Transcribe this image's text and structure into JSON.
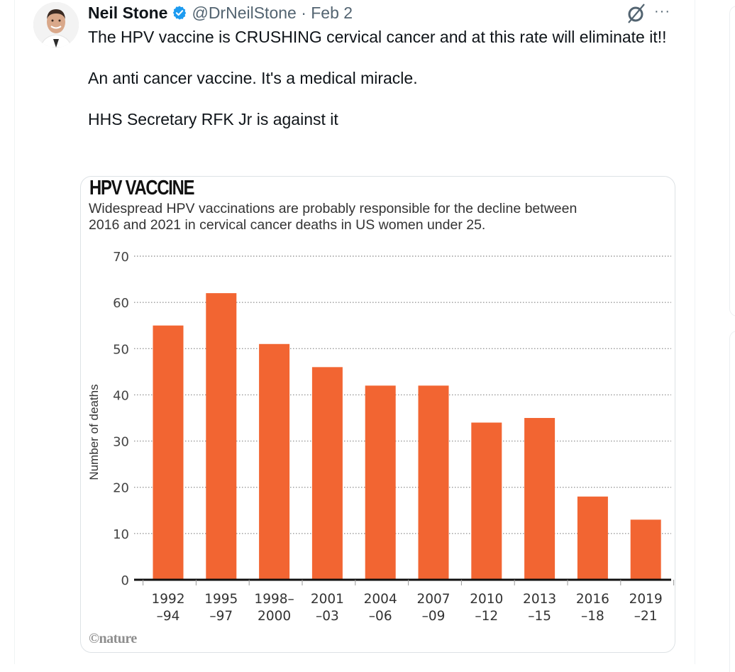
{
  "tweet": {
    "author_name": "Neil Stone",
    "handle_and_date": "@DrNeilStone · Feb 2",
    "verified": true,
    "lines": [
      "The HPV vaccine is CRUSHING cervical cancer and at this rate will eliminate it!!",
      "An anti cancer vaccine. It's a medical miracle.",
      "HHS Secretary RFK Jr is against it"
    ],
    "icons": {
      "verified": "verified-badge-icon",
      "grok": "grok-icon",
      "more": "more-icon"
    },
    "more_label": "···"
  },
  "colors": {
    "bar": "#f26532",
    "verified": "#1d9bf0",
    "handle": "#536471",
    "grid": "#999999"
  },
  "chart_data": {
    "type": "bar",
    "title": "HPV VACCINE",
    "subtitle": "Widespread HPV vaccinations are probably responsible for the decline between 2016 and 2021 in cervical cancer deaths in US women under 25.",
    "ylabel": "Number of deaths",
    "xlabel": "",
    "ylim": [
      0,
      70
    ],
    "yticks": [
      0,
      10,
      20,
      30,
      40,
      50,
      60,
      70
    ],
    "grid": true,
    "categories": [
      [
        "1992",
        "–94"
      ],
      [
        "1995",
        "–97"
      ],
      [
        "1998–",
        "2000"
      ],
      [
        "2001",
        "–03"
      ],
      [
        "2004",
        "–06"
      ],
      [
        "2007",
        "–09"
      ],
      [
        "2010",
        "–12"
      ],
      [
        "2013",
        "–15"
      ],
      [
        "2016",
        "–18"
      ],
      [
        "2019",
        "–21"
      ]
    ],
    "values": [
      55,
      62,
      51,
      46,
      42,
      42,
      34,
      35,
      18,
      13
    ],
    "source": "©nature"
  }
}
